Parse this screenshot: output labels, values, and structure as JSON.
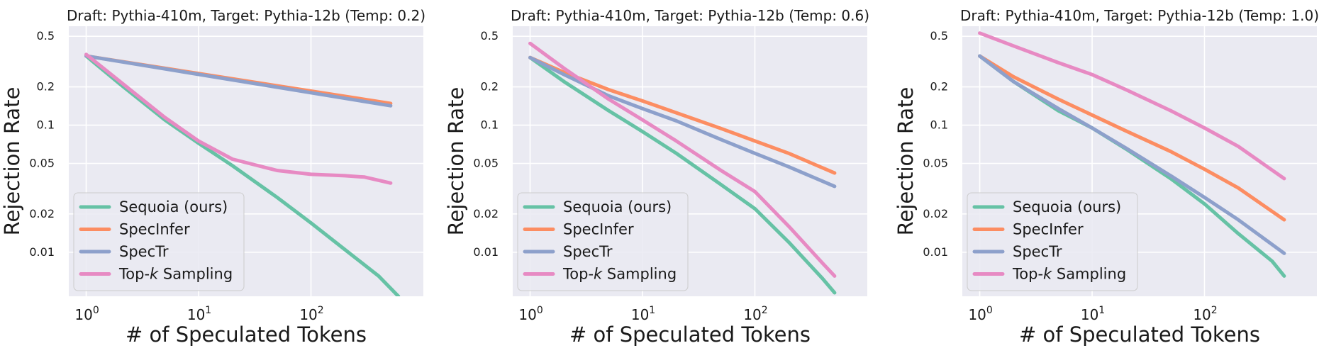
{
  "chart_data": [
    {
      "type": "line",
      "title": "Draft: Pythia-410m, Target: Pythia-12b (Temp: 0.2)",
      "xlabel": "# of Speculated Tokens",
      "ylabel": "Rejection Rate",
      "xscale": "log",
      "yscale": "log",
      "xlim": [
        0.7,
        1000
      ],
      "ylim": [
        0.0045,
        0.6
      ],
      "xticks": [
        {
          "v": 1,
          "base": "10",
          "exp": "0"
        },
        {
          "v": 10,
          "base": "10",
          "exp": "1"
        },
        {
          "v": 100,
          "base": "10",
          "exp": "2"
        }
      ],
      "yticks": [
        {
          "v": 0.5,
          "label": "0.5"
        },
        {
          "v": 0.2,
          "label": "0.2"
        },
        {
          "v": 0.1,
          "label": "0.1"
        },
        {
          "v": 0.05,
          "label": "0.05"
        },
        {
          "v": 0.02,
          "label": "0.02"
        },
        {
          "v": 0.01,
          "label": "0.01"
        }
      ],
      "grid": true,
      "legend": "lower-left",
      "series": [
        {
          "name": "Sequoia (ours)",
          "color": "#66c2a5",
          "x": [
            1,
            2,
            5,
            10,
            20,
            50,
            100,
            200,
            400,
            600
          ],
          "y": [
            0.35,
            0.21,
            0.11,
            0.072,
            0.048,
            0.027,
            0.017,
            0.0105,
            0.0065,
            0.0045
          ]
        },
        {
          "name": "SpecInfer",
          "color": "#fc8d62",
          "x": [
            1,
            512
          ],
          "y": [
            0.35,
            0.148
          ]
        },
        {
          "name": "SpecTr",
          "color": "#8da0cb",
          "x": [
            1,
            512
          ],
          "y": [
            0.35,
            0.142
          ]
        },
        {
          "name": "Top-k Sampling",
          "color": "#e78ac3",
          "x": [
            1,
            2,
            5,
            10,
            20,
            50,
            100,
            200,
            300,
            512
          ],
          "y": [
            0.36,
            0.22,
            0.115,
            0.075,
            0.054,
            0.044,
            0.041,
            0.04,
            0.039,
            0.035
          ]
        }
      ]
    },
    {
      "type": "line",
      "title": "Draft: Pythia-410m, Target: Pythia-12b (Temp: 0.6)",
      "xlabel": "# of Speculated Tokens",
      "ylabel": "Rejection Rate",
      "xscale": "log",
      "yscale": "log",
      "xlim": [
        0.7,
        1000
      ],
      "ylim": [
        0.0045,
        0.6
      ],
      "xticks": [
        {
          "v": 1,
          "base": "10",
          "exp": "0"
        },
        {
          "v": 10,
          "base": "10",
          "exp": "1"
        },
        {
          "v": 100,
          "base": "10",
          "exp": "2"
        }
      ],
      "yticks": [
        {
          "v": 0.5,
          "label": "0.5"
        },
        {
          "v": 0.2,
          "label": "0.2"
        },
        {
          "v": 0.1,
          "label": "0.1"
        },
        {
          "v": 0.05,
          "label": "0.05"
        },
        {
          "v": 0.02,
          "label": "0.02"
        },
        {
          "v": 0.01,
          "label": "0.01"
        }
      ],
      "grid": true,
      "legend": "lower-left",
      "series": [
        {
          "name": "Sequoia (ours)",
          "color": "#66c2a5",
          "x": [
            1,
            2,
            5,
            10,
            20,
            50,
            100,
            200,
            400,
            512
          ],
          "y": [
            0.34,
            0.22,
            0.13,
            0.089,
            0.06,
            0.034,
            0.022,
            0.012,
            0.0062,
            0.0048
          ]
        },
        {
          "name": "SpecInfer",
          "color": "#fc8d62",
          "x": [
            1,
            2,
            5,
            10,
            20,
            50,
            100,
            200,
            512
          ],
          "y": [
            0.34,
            0.26,
            0.19,
            0.155,
            0.125,
            0.094,
            0.075,
            0.06,
            0.042
          ]
        },
        {
          "name": "SpecTr",
          "color": "#8da0cb",
          "x": [
            1,
            2,
            5,
            10,
            20,
            50,
            100,
            200,
            512
          ],
          "y": [
            0.34,
            0.25,
            0.17,
            0.135,
            0.108,
            0.077,
            0.06,
            0.047,
            0.033
          ]
        },
        {
          "name": "Top-k Sampling",
          "color": "#e78ac3",
          "x": [
            1,
            2,
            5,
            10,
            20,
            50,
            100,
            200,
            400,
            512
          ],
          "y": [
            0.44,
            0.28,
            0.16,
            0.11,
            0.075,
            0.044,
            0.03,
            0.016,
            0.0082,
            0.0065
          ]
        }
      ]
    },
    {
      "type": "line",
      "title": "Draft: Pythia-410m, Target: Pythia-12b (Temp: 1.0)",
      "xlabel": "# of Speculated Tokens",
      "ylabel": "Rejection Rate",
      "xscale": "log",
      "yscale": "log",
      "xlim": [
        0.7,
        1000
      ],
      "ylim": [
        0.0045,
        0.6
      ],
      "xticks": [
        {
          "v": 1,
          "base": "10",
          "exp": "0"
        },
        {
          "v": 10,
          "base": "10",
          "exp": "1"
        },
        {
          "v": 100,
          "base": "10",
          "exp": "2"
        }
      ],
      "yticks": [
        {
          "v": 0.5,
          "label": "0.5"
        },
        {
          "v": 0.2,
          "label": "0.2"
        },
        {
          "v": 0.1,
          "label": "0.1"
        },
        {
          "v": 0.05,
          "label": "0.05"
        },
        {
          "v": 0.02,
          "label": "0.02"
        },
        {
          "v": 0.01,
          "label": "0.01"
        }
      ],
      "grid": true,
      "legend": "lower-left",
      "series": [
        {
          "name": "Sequoia (ours)",
          "color": "#66c2a5",
          "x": [
            1,
            2,
            5,
            10,
            20,
            50,
            100,
            200,
            400,
            512
          ],
          "y": [
            0.35,
            0.22,
            0.13,
            0.095,
            0.065,
            0.038,
            0.024,
            0.014,
            0.0085,
            0.0065
          ]
        },
        {
          "name": "SpecInfer",
          "color": "#fc8d62",
          "x": [
            1,
            2,
            5,
            10,
            20,
            50,
            100,
            200,
            512
          ],
          "y": [
            0.35,
            0.24,
            0.16,
            0.12,
            0.09,
            0.062,
            0.045,
            0.032,
            0.018
          ]
        },
        {
          "name": "SpecTr",
          "color": "#8da0cb",
          "x": [
            1,
            2,
            5,
            10,
            20,
            50,
            100,
            200,
            512
          ],
          "y": [
            0.35,
            0.22,
            0.135,
            0.095,
            0.066,
            0.04,
            0.027,
            0.018,
            0.0098
          ]
        },
        {
          "name": "Top-k Sampling",
          "color": "#e78ac3",
          "x": [
            1,
            2,
            5,
            10,
            20,
            50,
            100,
            200,
            512
          ],
          "y": [
            0.53,
            0.42,
            0.31,
            0.25,
            0.19,
            0.13,
            0.095,
            0.068,
            0.038
          ]
        }
      ]
    }
  ]
}
